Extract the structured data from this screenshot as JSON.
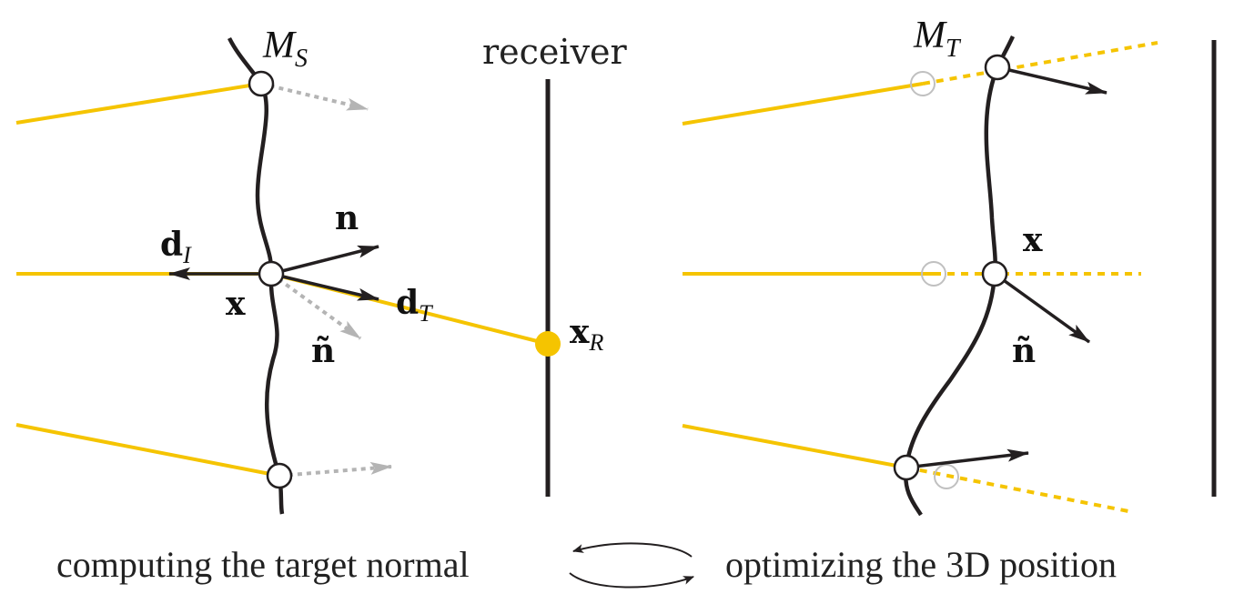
{
  "colors": {
    "ray": "#f5c400",
    "surface": "#231f20",
    "arrow": "#231f20",
    "ghost_arrow": "#b4b4b4",
    "ghost_circle": "#c0c0c0",
    "receiver_point": "#f5c400"
  },
  "left_panel": {
    "surface_label": "M",
    "surface_sub": "S",
    "receiver_label": "receiver",
    "normal_label": "n",
    "incident_label": "d",
    "incident_sub": "I",
    "point_label": "x",
    "target_normal_label": "ñ",
    "transmitted_label": "d",
    "transmitted_sub": "T",
    "receiver_point_label": "x",
    "receiver_point_sub": "R"
  },
  "right_panel": {
    "surface_label": "M",
    "surface_sub": "T",
    "point_label": "x",
    "target_normal_label": "ñ"
  },
  "captions": {
    "left": "computing the target normal",
    "right": "optimizing the 3D position"
  },
  "icons": {
    "cycle": "cycle-arrows-icon"
  }
}
